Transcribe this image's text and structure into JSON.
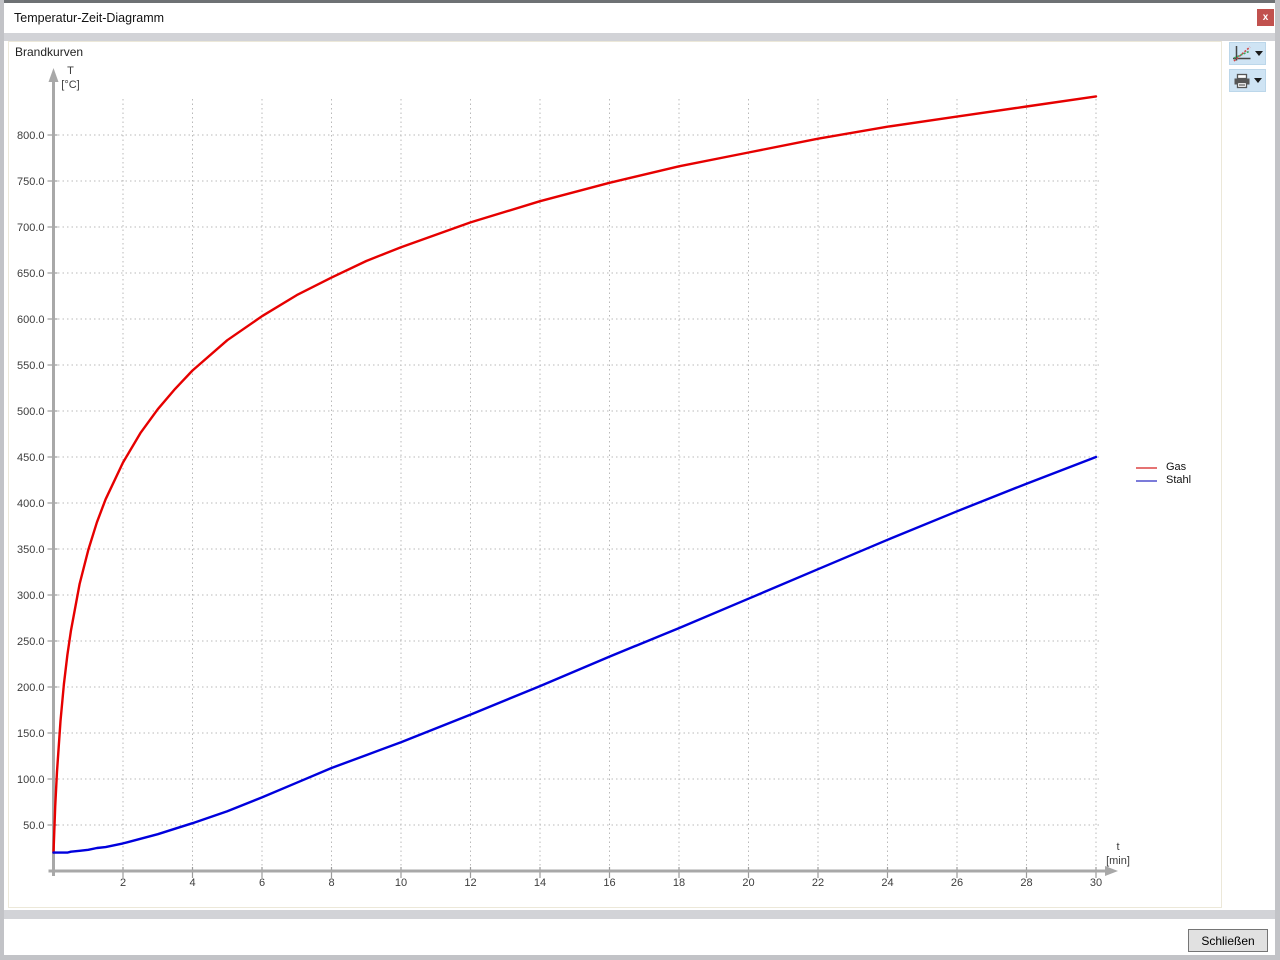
{
  "window": {
    "title": "Temperatur-Zeit-Diagramm",
    "close_glyph": "x"
  },
  "panel": {
    "title": "Brandkurven"
  },
  "toolbar": {
    "buttons": [
      {
        "icon": "curve-chart-icon",
        "has_dropdown": true
      },
      {
        "icon": "printer-icon",
        "has_dropdown": true
      }
    ]
  },
  "footer": {
    "close_label": "Schließen"
  },
  "colors": {
    "titlebar_close_background": "#c1514e",
    "gas_curve": "#e60000",
    "stahl_curve": "#0000dd",
    "gas_legend_sample": "#e57373",
    "stahl_legend_sample": "#7b7bd9"
  },
  "chart_data": {
    "type": "line",
    "title": "Brandkurven",
    "xlabel": "t [min]",
    "ylabel": "T [°C]",
    "axis_labels": {
      "y_lines": [
        "T",
        "[°C]"
      ],
      "x_lines": [
        "t",
        "[min]"
      ]
    },
    "xlim": [
      0,
      30.6
    ],
    "ylim": [
      0,
      870
    ],
    "x_ticks": [
      2,
      4,
      6,
      8,
      10,
      12,
      14,
      16,
      18,
      20,
      22,
      24,
      26,
      28,
      30
    ],
    "y_ticks": [
      50,
      100,
      150,
      200,
      250,
      300,
      350,
      400,
      450,
      500,
      550,
      600,
      650,
      700,
      750,
      800
    ],
    "y_tick_decimals": 1,
    "grid": true,
    "legend_position": "right",
    "x": [
      0,
      0.05,
      0.1,
      0.2,
      0.3,
      0.4,
      0.5,
      0.75,
      1,
      1.25,
      1.5,
      2,
      2.5,
      3,
      3.5,
      4,
      5,
      6,
      7,
      8,
      9,
      10,
      12,
      14,
      16,
      18,
      20,
      22,
      24,
      26,
      28,
      30
    ],
    "series": [
      {
        "name": "Gas",
        "color": "#e60000",
        "legend_color": "#e57373",
        "values": [
          20,
          70,
          108,
          163,
          203,
          235,
          261,
          312,
          349,
          379,
          404,
          444,
          476,
          502,
          524,
          544,
          577,
          603,
          626,
          645,
          663,
          678,
          705,
          728,
          748,
          766,
          781,
          796,
          809,
          820,
          831,
          842
        ]
      },
      {
        "name": "Stahl",
        "color": "#0000dd",
        "legend_color": "#7b7bd9",
        "values": [
          20,
          20,
          20,
          20,
          20,
          20,
          21,
          22,
          23,
          25,
          26,
          30,
          35,
          40,
          46,
          52,
          65,
          80,
          96,
          112,
          126,
          140,
          170,
          201,
          233,
          264,
          296,
          328,
          360,
          391,
          421,
          450
        ]
      }
    ]
  }
}
